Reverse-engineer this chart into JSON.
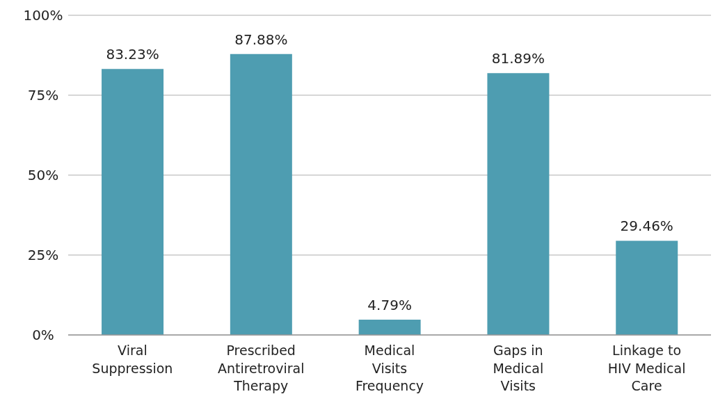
{
  "chart_data": {
    "type": "bar",
    "categories": [
      "Viral Suppression",
      "Prescribed Antiretroviral Therapy",
      "Medical Visits Frequency",
      "Gaps in Medical Visits",
      "Linkage to HIV Medical Care"
    ],
    "values": [
      83.23,
      87.88,
      4.79,
      81.89,
      29.46
    ],
    "value_labels": [
      "83.23%",
      "87.88%",
      "4.79%",
      "81.89%",
      "29.46%"
    ],
    "color": "#4e9db1",
    "ylim": [
      0,
      100
    ],
    "yticks": [
      {
        "value": 0,
        "label": "0%"
      },
      {
        "value": 25,
        "label": "25%"
      },
      {
        "value": 50,
        "label": "50%"
      },
      {
        "value": 75,
        "label": "75%"
      },
      {
        "value": 100,
        "label": "100%"
      }
    ],
    "grid": "y"
  }
}
